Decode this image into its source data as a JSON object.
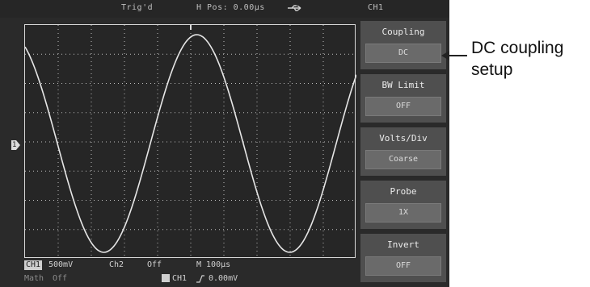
{
  "topbar": {
    "trigger_status": "Trig'd",
    "h_position": "H Pos: 0.00µs",
    "usb_icon": "usb-icon",
    "channel": "CH1"
  },
  "trigger_marker": "1",
  "menu": {
    "items": [
      {
        "title": "Coupling",
        "value": "DC"
      },
      {
        "title": "BW Limit",
        "value": "OFF"
      },
      {
        "title": "Volts/Div",
        "value": "Coarse"
      },
      {
        "title": "Probe",
        "value": "1X"
      },
      {
        "title": "Invert",
        "value": "OFF"
      }
    ]
  },
  "statusbar": {
    "ch1_label": "CH1",
    "ch1_scale": "500mV",
    "ch2_label": "Ch2",
    "ch2_state": "Off",
    "timebase": "M 100µs",
    "math_label": "Math",
    "math_state": "Off",
    "trigger_source": "CH1",
    "trigger_slope_icon": "rising-edge-icon",
    "trigger_level": "0.00mV"
  },
  "annotation": {
    "line1": "DC coupling",
    "line2": "setup"
  }
}
